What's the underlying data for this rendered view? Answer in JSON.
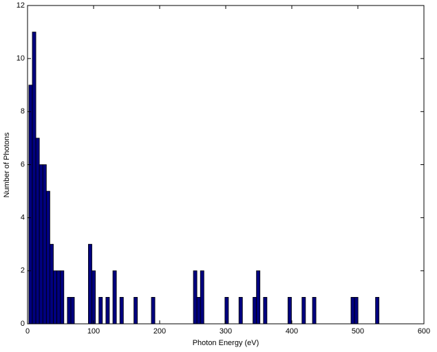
{
  "chart_data": {
    "type": "histogram",
    "xlabel": "Photon Energy (eV)",
    "ylabel": "Number of Photons",
    "bins": [
      2,
      7.3,
      12.6,
      17.9,
      23.2,
      28.5,
      33.8,
      39.1,
      44.4,
      49.7,
      55,
      60.3,
      65.6,
      70.9,
      76.2,
      81.5,
      86.8,
      92.1,
      97.4,
      102.7,
      108,
      113.3,
      118.6,
      123.9,
      129.2,
      134.5,
      139.8,
      145.1,
      150.4,
      155.7,
      161,
      166.3,
      171.6,
      176.9,
      182.2,
      187.5,
      192.8,
      198.1,
      203.4,
      208.7,
      214,
      219.3,
      224.6,
      229.9,
      235.2,
      240.5,
      245.8,
      251.1,
      256.4,
      261.7,
      267,
      272.3,
      277.6,
      282.9,
      288.2,
      293.5,
      298.8,
      304.1,
      309.4,
      314.7,
      320,
      325.3,
      330.6,
      335.9,
      341.2,
      346.5,
      351.8,
      357.1,
      362.4,
      367.7,
      373,
      378.3,
      383.6,
      388.9,
      394.2,
      399.5,
      404.8,
      410.1,
      415.4,
      420.7,
      426,
      431.3,
      436.6,
      441.9,
      447.2,
      452.5,
      457.8,
      463.1,
      468.4,
      473.7,
      479,
      484.3,
      489.6,
      494.9,
      500.2,
      505.5,
      510.8,
      516.1,
      521.4,
      526.7,
      532
    ],
    "values": [
      9,
      11,
      7,
      6,
      6,
      5,
      3,
      2,
      2,
      2,
      0,
      1,
      1,
      0,
      0,
      0,
      0,
      3,
      2,
      0,
      1,
      0,
      1,
      0,
      2,
      0,
      1,
      0,
      0,
      0,
      1,
      0,
      0,
      0,
      0,
      1,
      0,
      0,
      0,
      0,
      0,
      0,
      0,
      0,
      0,
      0,
      0,
      2,
      1,
      2,
      0,
      0,
      0,
      0,
      0,
      0,
      1,
      0,
      0,
      0,
      1,
      0,
      0,
      0,
      1,
      2,
      0,
      1,
      0,
      0,
      0,
      0,
      0,
      0,
      1,
      0,
      0,
      0,
      1,
      0,
      0,
      1,
      0,
      0,
      0,
      0,
      0,
      0,
      0,
      0,
      0,
      0,
      1,
      1,
      0,
      0,
      0,
      0,
      0,
      1
    ],
    "color": "#00007f",
    "edgecolor": "#000000",
    "xlim": [
      0,
      600
    ],
    "xticks": [
      0,
      100,
      200,
      300,
      400,
      500,
      600
    ],
    "ylim": [
      0,
      12
    ],
    "yticks": [
      0,
      2,
      4,
      6,
      8,
      10,
      12
    ],
    "grid": false
  }
}
